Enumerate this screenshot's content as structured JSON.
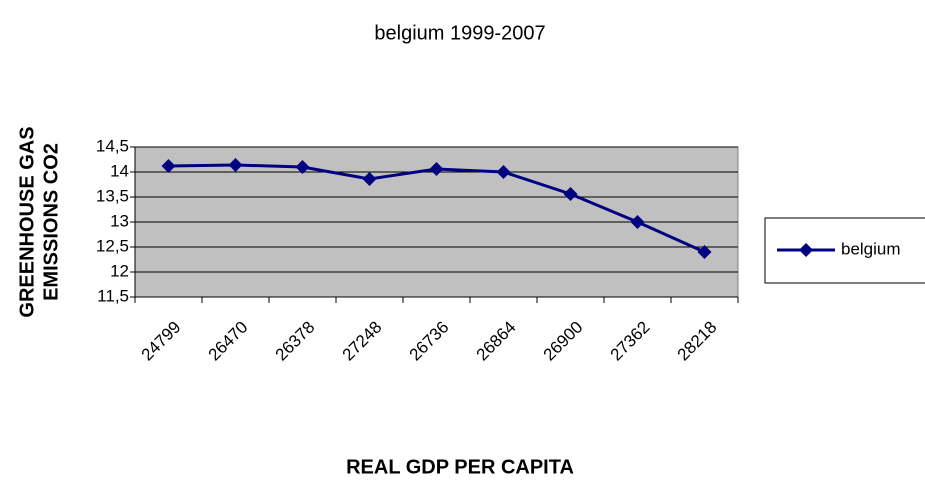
{
  "chart_data": {
    "type": "line",
    "title": "belgium 1999-2007",
    "x_label": "REAL GDP PER CAPITA",
    "y_label": [
      "GREENHOUSE GAS",
      "EMISSIONS CO2"
    ],
    "categories": [
      "24799",
      "26470",
      "26378",
      "27248",
      "26736",
      "26864",
      "26900",
      "27362",
      "28218"
    ],
    "series": [
      {
        "name": "belgium",
        "color": "#000080",
        "values": [
          14.12,
          14.14,
          14.1,
          13.86,
          14.06,
          14.0,
          13.56,
          13.0,
          12.4
        ]
      }
    ],
    "ylim": [
      11.5,
      14.5
    ],
    "yticks": [
      {
        "value": 11.5,
        "label": "11,5"
      },
      12,
      {
        "value": 12.5,
        "label": "12,5"
      },
      13,
      {
        "value": 13.5,
        "label": "13,5"
      },
      14,
      {
        "value": 14.5,
        "label": "14,5"
      }
    ],
    "grid": true,
    "legend": "right"
  }
}
